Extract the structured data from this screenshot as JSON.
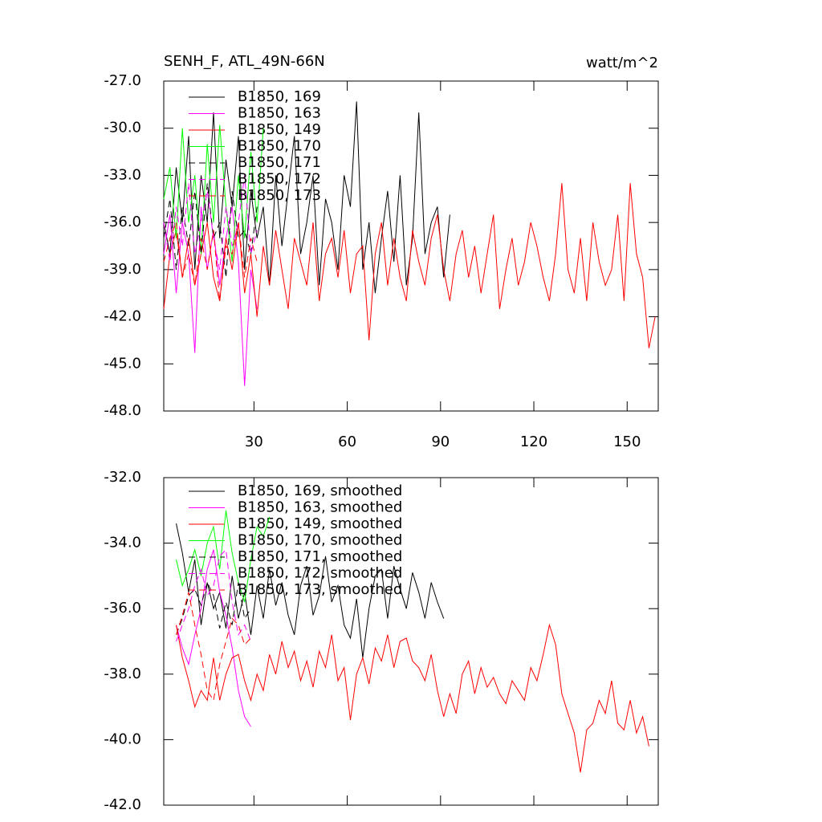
{
  "chart_data": [
    {
      "type": "line",
      "title": "SENH_F, ATL_49N-66N",
      "units": "watt/m^2",
      "xlim": [
        1,
        160
      ],
      "xticks": [
        30,
        60,
        90,
        120,
        150
      ],
      "xticklabels": true,
      "ylim": [
        -48,
        -27
      ],
      "yticks": [
        {
          "value": -48,
          "label": "-48.0"
        },
        {
          "value": -45,
          "label": "-45.0"
        },
        {
          "value": -42,
          "label": "-42.0"
        },
        {
          "value": -39,
          "label": "-39.0"
        },
        {
          "value": -36,
          "label": "-36.0"
        },
        {
          "value": -33,
          "label": "-33.0"
        },
        {
          "value": -30,
          "label": "-30.0"
        },
        {
          "value": -27,
          "label": "-27.0"
        }
      ],
      "series": [
        {
          "name": "B1850, 169",
          "color": "#000000",
          "dash": false,
          "x": [
            1,
            3,
            5,
            7,
            9,
            11,
            13,
            15,
            17,
            19,
            21,
            23,
            25,
            27,
            29,
            31,
            33,
            35,
            37,
            39,
            41,
            43,
            45,
            47,
            49,
            51,
            53,
            55,
            57,
            59,
            61,
            63,
            65,
            67,
            69,
            71,
            73,
            75,
            77,
            79,
            81,
            83,
            85,
            87,
            89,
            91,
            93
          ],
          "values": [
            -36,
            -38,
            -32.5,
            -36,
            -30.5,
            -39,
            -33,
            -36,
            -29,
            -37,
            -32,
            -35,
            -30.5,
            -39,
            -34,
            -37,
            -35,
            -40,
            -33,
            -37.5,
            -34,
            -30.5,
            -38,
            -36,
            -33,
            -40,
            -34.5,
            -36,
            -39,
            -33,
            -35,
            -28.3,
            -39,
            -36,
            -40.5,
            -37,
            -34,
            -38.5,
            -33,
            -40,
            -37,
            -29,
            -38,
            -36,
            -35,
            -39.5,
            -35.5
          ]
        },
        {
          "name": "B1850, 163",
          "color": "#ff00ff",
          "dash": false,
          "x": [
            1,
            3,
            5,
            7,
            9,
            11,
            13,
            15,
            17,
            19,
            21,
            23,
            25,
            27,
            29,
            31
          ],
          "values": [
            -38,
            -35.5,
            -40.5,
            -36,
            -38,
            -44.3,
            -35,
            -39,
            -36.5,
            -40,
            -37,
            -35,
            -38.5,
            -46.4,
            -39,
            -41.5
          ]
        },
        {
          "name": "B1850, 149",
          "color": "#ff0000",
          "dash": false,
          "x": [
            1,
            3,
            5,
            7,
            9,
            11,
            13,
            15,
            17,
            19,
            21,
            23,
            25,
            27,
            29,
            31,
            33,
            35,
            37,
            39,
            41,
            43,
            45,
            47,
            49,
            51,
            53,
            55,
            57,
            59,
            61,
            63,
            65,
            67,
            69,
            71,
            73,
            75,
            77,
            79,
            81,
            83,
            85,
            87,
            89,
            91,
            93,
            95,
            97,
            99,
            101,
            103,
            105,
            107,
            109,
            111,
            113,
            115,
            117,
            119,
            121,
            123,
            125,
            127,
            129,
            131,
            133,
            135,
            137,
            139,
            141,
            143,
            145,
            147,
            149,
            151,
            153,
            155,
            157,
            159
          ],
          "values": [
            -41.5,
            -38,
            -36.5,
            -39.5,
            -37,
            -40,
            -38,
            -36,
            -39.5,
            -41,
            -37,
            -39,
            -36,
            -40.5,
            -38,
            -42,
            -37.5,
            -40,
            -36.5,
            -39,
            -41.5,
            -37,
            -38.5,
            -40,
            -36,
            -41,
            -38,
            -37,
            -39.5,
            -36.5,
            -40.5,
            -38,
            -37.5,
            -43.5,
            -38,
            -36,
            -40,
            -37,
            -39.5,
            -41,
            -36.5,
            -38.5,
            -40,
            -37,
            -35.5,
            -39,
            -41,
            -38,
            -36.5,
            -39.5,
            -37.5,
            -40.5,
            -38,
            -35.5,
            -41.5,
            -39,
            -37,
            -40,
            -38.5,
            -36,
            -37.5,
            -39.5,
            -41,
            -38,
            -33.5,
            -39,
            -40.5,
            -37,
            -41,
            -36,
            -38.5,
            -40,
            -39,
            -35.5,
            -41,
            -33.5,
            -38,
            -39.5,
            -44,
            -42
          ]
        },
        {
          "name": "B1850, 170",
          "color": "#00ff00",
          "dash": false,
          "x": [
            1,
            3,
            5,
            7,
            9,
            11,
            13,
            15,
            17,
            19,
            21,
            23,
            25,
            27,
            29,
            31,
            33
          ],
          "values": [
            -34.5,
            -32.5,
            -37,
            -30,
            -36,
            -33,
            -38,
            -31,
            -36,
            -29.8,
            -35,
            -38.5,
            -33,
            -37,
            -31.5,
            -36,
            -30
          ]
        },
        {
          "name": "B1850, 171",
          "color": "#000000",
          "dash": true,
          "x": [
            1,
            3,
            5,
            7,
            9,
            11,
            13,
            15,
            17,
            19,
            21,
            23,
            25,
            27,
            29,
            31
          ],
          "values": [
            -37,
            -34.5,
            -39,
            -35,
            -37.5,
            -34,
            -38,
            -33.5,
            -37,
            -36,
            -39.5,
            -34,
            -37,
            -36.5,
            -38,
            -35
          ]
        },
        {
          "name": "B1850, 172",
          "color": "#ff00ff",
          "dash": true,
          "x": [
            1,
            3,
            5,
            7,
            9,
            11,
            13,
            15,
            17,
            19,
            21,
            23,
            25,
            27,
            29,
            31
          ],
          "values": [
            -36,
            -38.5,
            -35,
            -37.5,
            -33.5,
            -38,
            -36,
            -34,
            -37,
            -39,
            -35,
            -37.5,
            -36,
            -33,
            -38,
            -36.5
          ]
        },
        {
          "name": "B1850, 173",
          "color": "#ff0000",
          "dash": true,
          "x": [
            1,
            3,
            5,
            7,
            9,
            11,
            13,
            15,
            17,
            19,
            21,
            23,
            25,
            27,
            29,
            31
          ],
          "values": [
            -38.5,
            -37,
            -36,
            -39.5,
            -38,
            -40,
            -37,
            -39,
            -36.5,
            -41,
            -37.5,
            -38,
            -36,
            -39.5,
            -37,
            -38.5
          ]
        }
      ]
    },
    {
      "type": "line",
      "xlim": [
        1,
        160
      ],
      "xticks": [
        30,
        60,
        90,
        120,
        150
      ],
      "xticklabels": false,
      "ylim": [
        -42,
        -32
      ],
      "yticks": [
        {
          "value": -42,
          "label": "-42.0"
        },
        {
          "value": -40,
          "label": "-40.0"
        },
        {
          "value": -38,
          "label": "-38.0"
        },
        {
          "value": -36,
          "label": "-36.0"
        },
        {
          "value": -34,
          "label": "-34.0"
        },
        {
          "value": -32,
          "label": "-32.0"
        }
      ],
      "series": [
        {
          "name": "B1850, 169, smoothed",
          "color": "#000000",
          "dash": false,
          "x": [
            5,
            7,
            9,
            11,
            13,
            15,
            17,
            19,
            21,
            23,
            25,
            27,
            29,
            31,
            33,
            35,
            37,
            39,
            41,
            43,
            45,
            47,
            49,
            51,
            53,
            55,
            57,
            59,
            61,
            63,
            65,
            67,
            69,
            71,
            73,
            75,
            77,
            79,
            81,
            83,
            85,
            87,
            89,
            91
          ],
          "values": [
            -33.4,
            -34.3,
            -35.5,
            -34.5,
            -36.5,
            -35.2,
            -36,
            -35.5,
            -36.6,
            -35,
            -36.3,
            -35.5,
            -36.8,
            -35.3,
            -36.3,
            -34.8,
            -35.9,
            -35.2,
            -36.2,
            -36.8,
            -35.3,
            -34.7,
            -36.2,
            -35.6,
            -34.4,
            -35.8,
            -35.3,
            -36.5,
            -36.9,
            -35.7,
            -37.5,
            -36,
            -35,
            -34.8,
            -36.3,
            -34.7,
            -35.4,
            -36,
            -34.9,
            -35.5,
            -36.3,
            -35.2,
            -35.8,
            -36.3
          ]
        },
        {
          "name": "B1850, 163, smoothed",
          "color": "#ff00ff",
          "dash": false,
          "x": [
            5,
            7,
            9,
            11,
            13,
            15,
            17,
            19,
            21,
            23,
            25,
            27,
            29
          ],
          "values": [
            -36.5,
            -37.2,
            -37.7,
            -36.8,
            -36,
            -34.8,
            -34.2,
            -35.5,
            -36.2,
            -37.2,
            -38.5,
            -39.3,
            -39.6
          ]
        },
        {
          "name": "B1850, 149, smoothed",
          "color": "#ff0000",
          "dash": false,
          "x": [
            5,
            7,
            9,
            11,
            13,
            15,
            17,
            19,
            21,
            23,
            25,
            27,
            29,
            31,
            33,
            35,
            37,
            39,
            41,
            43,
            45,
            47,
            49,
            51,
            53,
            55,
            57,
            59,
            61,
            63,
            65,
            67,
            69,
            71,
            73,
            75,
            77,
            79,
            81,
            83,
            85,
            87,
            89,
            91,
            93,
            95,
            97,
            99,
            101,
            103,
            105,
            107,
            109,
            111,
            113,
            115,
            117,
            119,
            121,
            123,
            125,
            127,
            129,
            131,
            133,
            135,
            137,
            139,
            141,
            143,
            145,
            147,
            149,
            151,
            153,
            155,
            157
          ],
          "values": [
            -36.5,
            -37.5,
            -38.2,
            -39,
            -38.5,
            -38.8,
            -37.5,
            -38.8,
            -38,
            -37.5,
            -37.4,
            -38.2,
            -38.8,
            -38,
            -38.5,
            -37.4,
            -38,
            -37,
            -37.8,
            -37.3,
            -38.2,
            -37.6,
            -38.4,
            -37.3,
            -37.8,
            -36.8,
            -38.2,
            -37.8,
            -39.4,
            -38,
            -37.5,
            -38.3,
            -37.2,
            -37.6,
            -36.8,
            -37.8,
            -37,
            -36.9,
            -37.6,
            -37.8,
            -38.2,
            -37.4,
            -38.5,
            -39.3,
            -38.6,
            -39.2,
            -38,
            -37.6,
            -38.6,
            -37.8,
            -38.4,
            -38.1,
            -38.6,
            -38.9,
            -38.2,
            -38.5,
            -38.8,
            -37.8,
            -38.2,
            -37.4,
            -36.5,
            -37.1,
            -38.6,
            -39.2,
            -39.8,
            -41,
            -39.7,
            -39.5,
            -38.8,
            -39.2,
            -38.2,
            -39.5,
            -39.7,
            -38.8,
            -39.8,
            -39.3,
            -40.2
          ]
        },
        {
          "name": "B1850, 170, smoothed",
          "color": "#00ff00",
          "dash": false,
          "x": [
            5,
            7,
            9,
            11,
            13,
            15,
            17,
            19,
            21,
            23,
            25,
            27,
            29,
            31,
            33,
            35
          ],
          "values": [
            -34.5,
            -35.3,
            -34.8,
            -34.2,
            -35,
            -34,
            -33.5,
            -34.8,
            -33,
            -34.3,
            -35.2,
            -35.8,
            -34.5,
            -33.5,
            -33.8,
            -33.2
          ]
        },
        {
          "name": "B1850, 171, smoothed",
          "color": "#000000",
          "dash": true,
          "x": [
            5,
            7,
            9,
            11,
            13,
            15,
            17,
            19,
            21,
            23,
            25,
            27,
            29
          ],
          "values": [
            -36.8,
            -36.3,
            -35.6,
            -35.4,
            -35.9,
            -35.2,
            -35.6,
            -36.6,
            -35.8,
            -36.5,
            -35.2,
            -36.3,
            -36
          ]
        },
        {
          "name": "B1850, 172, smoothed",
          "color": "#ff00ff",
          "dash": true,
          "x": [
            5,
            7,
            9,
            11,
            13,
            15,
            17,
            19,
            21,
            23,
            25,
            27,
            29
          ],
          "values": [
            -37,
            -36.5,
            -36,
            -35.3,
            -34.8,
            -35.6,
            -35.3,
            -34.4,
            -34.2,
            -35.8,
            -36.8,
            -36.5,
            -37
          ]
        },
        {
          "name": "B1850, 173, smoothed",
          "color": "#ff0000",
          "dash": true,
          "x": [
            5,
            7,
            9,
            11,
            13,
            15,
            17,
            19,
            21,
            23,
            25,
            27,
            29
          ],
          "values": [
            -36.8,
            -36.2,
            -35.5,
            -36.5,
            -37.4,
            -38.5,
            -38.8,
            -37.7,
            -37,
            -36.3,
            -36.5,
            -37.1,
            -36.9
          ]
        }
      ]
    }
  ]
}
